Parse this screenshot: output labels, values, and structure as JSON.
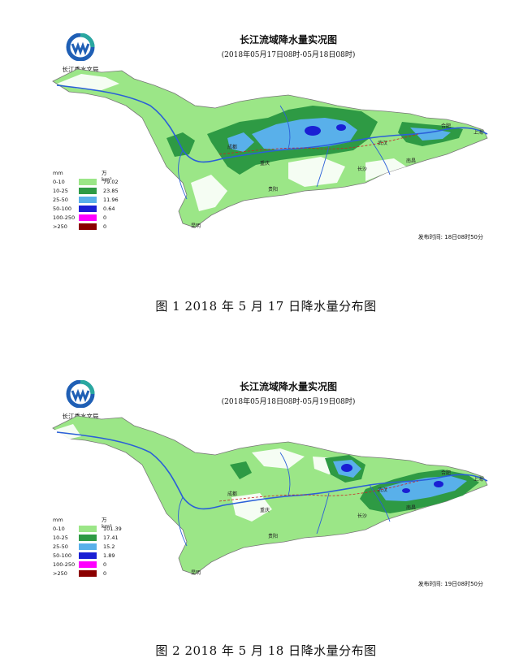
{
  "logo": {
    "org_name": "长江委水文局"
  },
  "colors": {
    "white": "#ffffff",
    "light_green": "#9be687",
    "green": "#2e9a44",
    "light_blue": "#59b0ea",
    "blue": "#1a1fd4",
    "magenta": "#ff00ff",
    "dark_red": "#8b0000",
    "river": "#2a5fd8",
    "rail": "#cc2222"
  },
  "legend_scale": {
    "unit_mm": "mm",
    "unit_area": "万km²",
    "ranges": [
      "0-10",
      "10-25",
      "25-50",
      "50-100",
      "100-250",
      ">250"
    ],
    "swatch_colors": [
      "#9be687",
      "#2e9a44",
      "#59b0ea",
      "#1a1fd4",
      "#ff00ff",
      "#8b0000"
    ]
  },
  "maps": [
    {
      "title": "长江流域降水量实况图",
      "subtitle": "(2018年05月17日08时-05月18日08时)",
      "areas": [
        "79.02",
        "23.85",
        "11.96",
        "0.64",
        "0",
        "0"
      ],
      "release_time": "发布时间: 18日08时50分",
      "caption": "图 1   2018 年 5 月 17 日降水量分布图",
      "cities": [
        "成都",
        "重庆",
        "贵阳",
        "武汉",
        "南昌",
        "合肥",
        "上海",
        "长沙",
        "昆明"
      ]
    },
    {
      "title": "长江流域降水量实况图",
      "subtitle": "(2018年05月18日08时-05月19日08时)",
      "areas": [
        "101.39",
        "17.41",
        "15.2",
        "1.89",
        "0",
        "0"
      ],
      "release_time": "发布时间: 19日08时50分",
      "caption": "图 2   2018 年 5 月 18 日降水量分布图",
      "cities": [
        "成都",
        "重庆",
        "贵阳",
        "武汉",
        "南昌",
        "合肥",
        "上海",
        "长沙",
        "昆明"
      ]
    }
  ]
}
